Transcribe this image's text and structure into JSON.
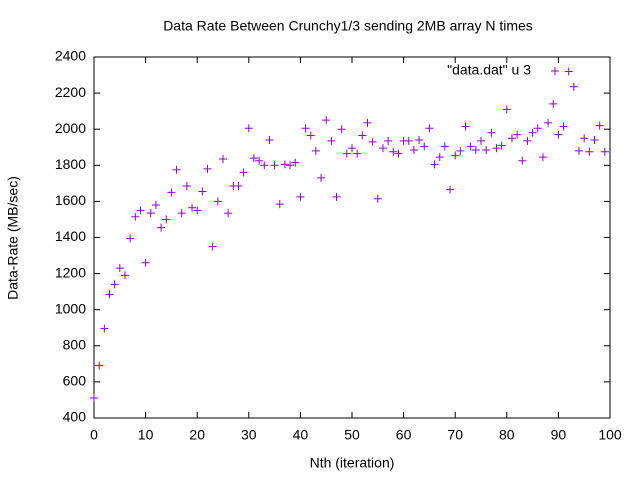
{
  "chart_data": {
    "type": "scatter",
    "title": "Data Rate Between Crunchy1/3 sending 2MB array N times",
    "x_label": "Nth (iteration)",
    "y_label": "Data-Rate (MB/sec)",
    "legend": "top-right",
    "xlim": [
      0,
      100
    ],
    "xticks": [
      0,
      10,
      20,
      30,
      40,
      50,
      60,
      70,
      80,
      90,
      100
    ],
    "ylim": [
      400,
      2400
    ],
    "yticks": [
      400,
      600,
      800,
      1000,
      1200,
      1400,
      1600,
      1800,
      2000,
      2200,
      2400
    ],
    "series": [
      {
        "name": "\"data.dat\" u 3",
        "color": "#9400d3",
        "x": [
          0,
          1,
          2,
          3,
          4,
          5,
          6,
          7,
          8,
          9,
          10,
          11,
          12,
          13,
          14,
          15,
          16,
          17,
          18,
          19,
          20,
          21,
          22,
          23,
          24,
          25,
          26,
          27,
          28,
          29,
          30,
          31,
          32,
          33,
          34,
          35,
          36,
          37,
          38,
          39,
          40,
          41,
          42,
          43,
          44,
          45,
          46,
          47,
          48,
          49,
          50,
          51,
          52,
          53,
          54,
          55,
          56,
          57,
          58,
          59,
          60,
          61,
          62,
          63,
          64,
          65,
          66,
          67,
          68,
          69,
          70,
          71,
          72,
          73,
          74,
          75,
          76,
          77,
          78,
          79,
          80,
          81,
          82,
          83,
          84,
          85,
          86,
          87,
          88,
          89,
          90,
          91,
          92,
          93,
          94,
          95,
          96,
          97,
          98,
          99
        ],
        "values": [
          511,
          690,
          895,
          1085,
          1140,
          1230,
          1190,
          1395,
          1515,
          1550,
          1260,
          1535,
          1580,
          1455,
          1500,
          1650,
          1775,
          1535,
          1685,
          1565,
          1550,
          1655,
          1780,
          1350,
          1600,
          1835,
          1535,
          1685,
          1685,
          1760,
          2005,
          1840,
          1825,
          1800,
          1940,
          1800,
          1585,
          1805,
          1800,
          1815,
          1625,
          2005,
          1965,
          1880,
          1730,
          2050,
          1935,
          1625,
          2000,
          1865,
          1895,
          1865,
          1965,
          2035,
          1930,
          1615,
          1895,
          1935,
          1875,
          1865,
          1935,
          1935,
          1885,
          1940,
          1905,
          2005,
          1805,
          1845,
          1905,
          1665,
          1855,
          1880,
          2015,
          1905,
          1885,
          1935,
          1885,
          1980,
          1895,
          1910,
          2110,
          1950,
          1970,
          1825,
          1935,
          1980,
          2005,
          1845,
          2035,
          2140,
          1970,
          2015,
          2320,
          2235,
          1880,
          1950,
          1875,
          1940,
          2020,
          1875
        ]
      }
    ]
  }
}
